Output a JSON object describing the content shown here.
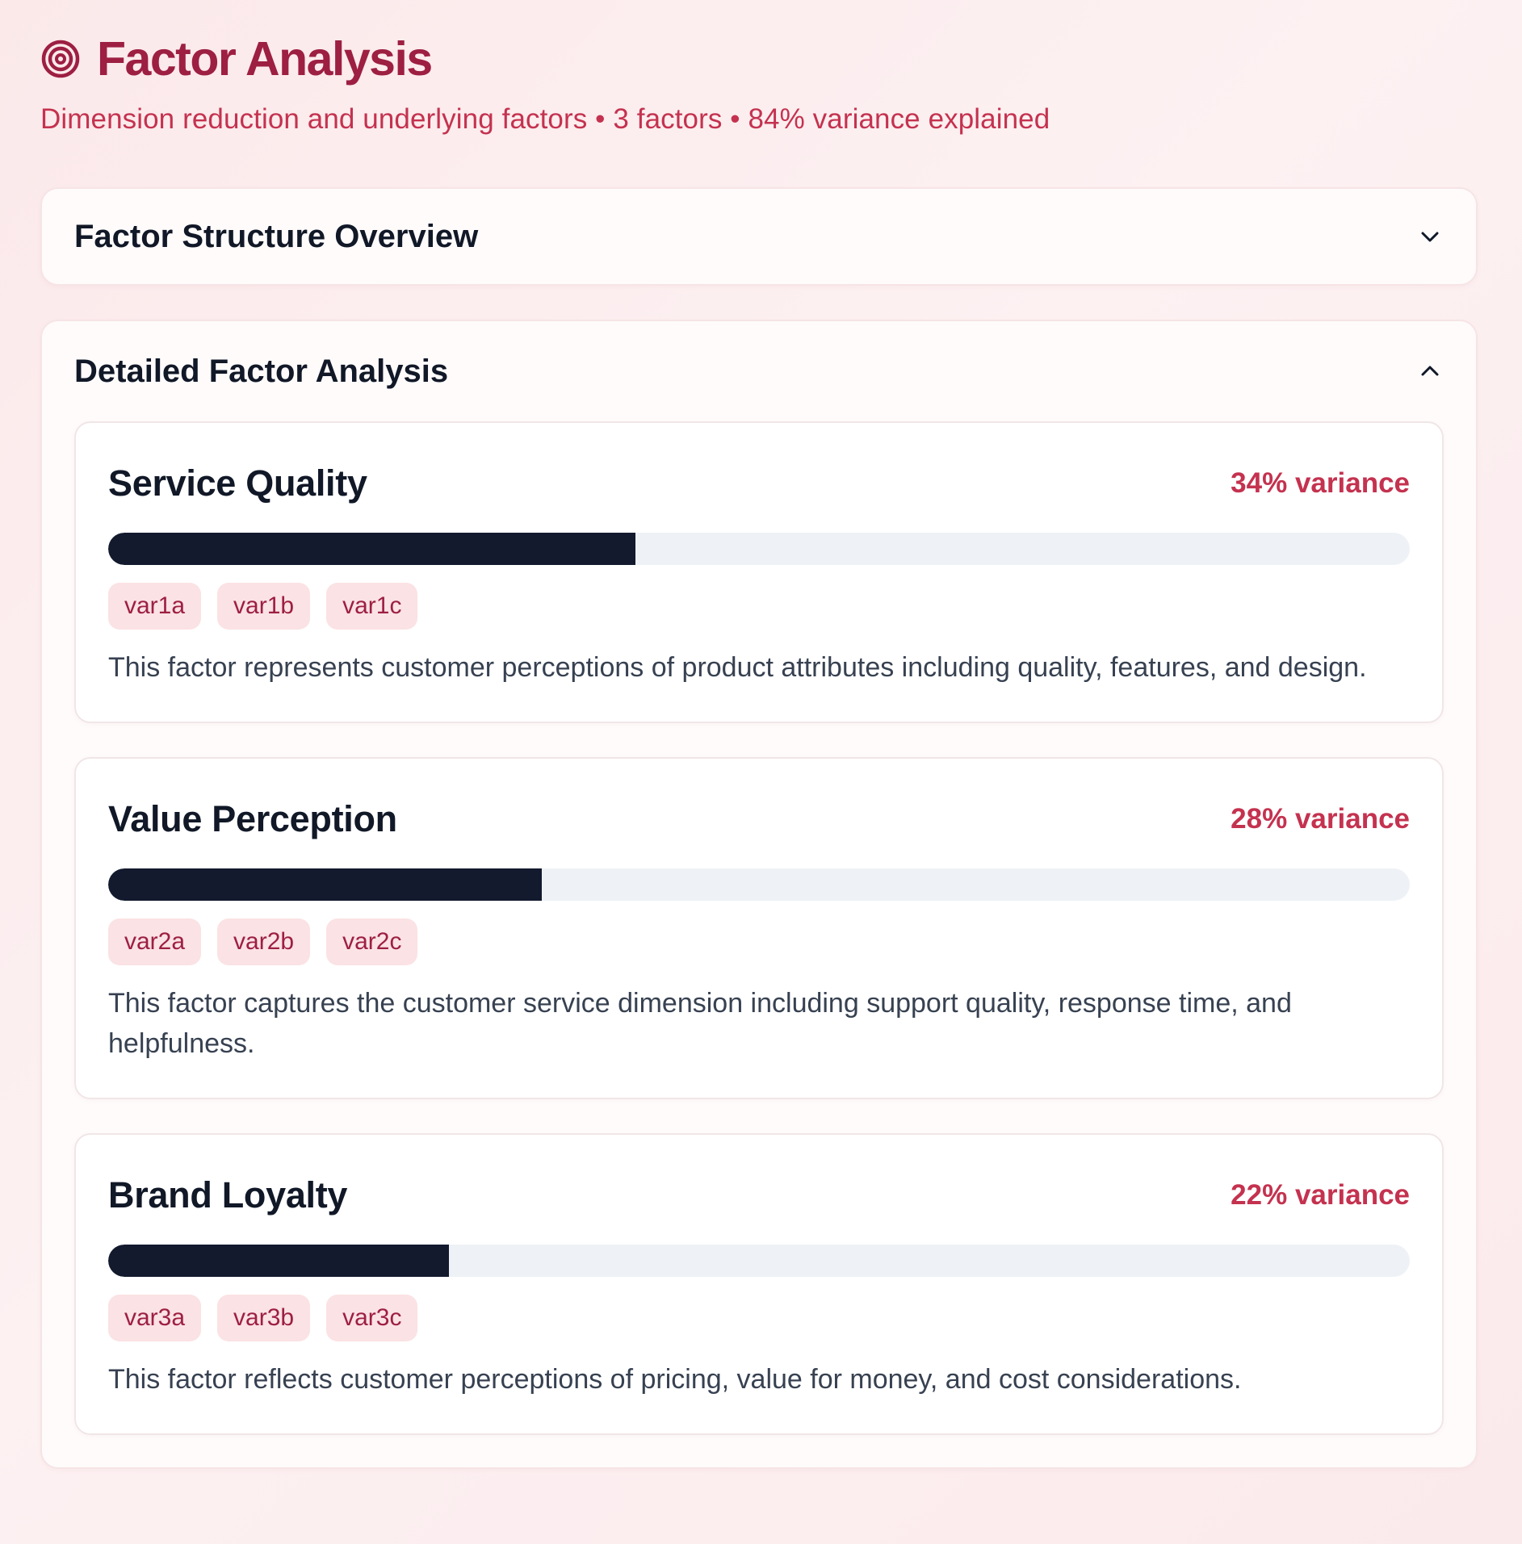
{
  "header": {
    "icon": "target-icon",
    "title": "Factor Analysis",
    "subtitle": "Dimension reduction and underlying factors • 3 factors • 84% variance explained"
  },
  "colors": {
    "accent": "#9d1f42",
    "accent_light": "#c4324f",
    "bar_fill": "#131a2e",
    "bar_track": "#eef2f6",
    "tag_bg": "#fbe2e4"
  },
  "overview_panel": {
    "title": "Factor Structure Overview",
    "toggle_icon": "chevron-down-icon",
    "expanded": false
  },
  "detail_panel": {
    "title": "Detailed Factor Analysis",
    "toggle_icon": "chevron-up-icon",
    "expanded": true,
    "factors": [
      {
        "name": "Service Quality",
        "variance_label": "34% variance",
        "variance_fraction": 0.405,
        "variables": [
          "var1a",
          "var1b",
          "var1c"
        ],
        "description": "This factor represents customer perceptions of product attributes including quality, features, and design."
      },
      {
        "name": "Value Perception",
        "variance_label": "28% variance",
        "variance_fraction": 0.333,
        "variables": [
          "var2a",
          "var2b",
          "var2c"
        ],
        "description": "This factor captures the customer service dimension including support quality, response time, and helpfulness."
      },
      {
        "name": "Brand Loyalty",
        "variance_label": "22% variance",
        "variance_fraction": 0.262,
        "variables": [
          "var3a",
          "var3b",
          "var3c"
        ],
        "description": "This factor reflects customer perceptions of pricing, value for money, and cost considerations."
      }
    ]
  }
}
